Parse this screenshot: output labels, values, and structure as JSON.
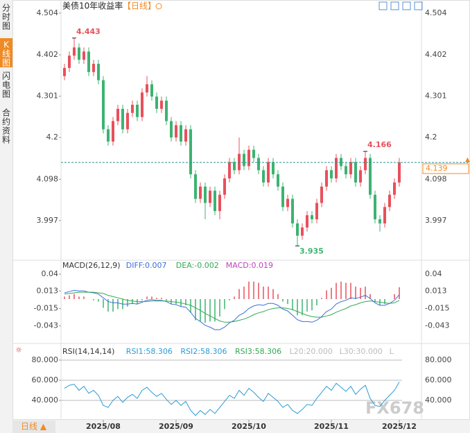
{
  "sidebar": [
    "分时图",
    "K线图",
    "闪电图",
    "合约资料"
  ],
  "chart_data": {
    "type": "candlestick",
    "title": "美债10年收益率",
    "subtitle": "【日线】",
    "period_button": "日线 ▲",
    "watermark": "FX678",
    "up_color": "#e8505b",
    "down_color": "#3cb371",
    "ylim": [
      3.9,
      4.536
    ],
    "yticks": [
      4.504,
      4.402,
      4.301,
      4.2,
      4.098,
      3.997
    ],
    "xticks": [
      {
        "value": 8,
        "label": "2025/08"
      },
      {
        "value": 23,
        "label": "2025/09"
      },
      {
        "value": 38,
        "label": "2025/10"
      },
      {
        "value": 55,
        "label": "2025/11"
      },
      {
        "value": 69,
        "label": "2025/12"
      }
    ],
    "candles": [
      [
        4.35,
        4.38,
        4.34,
        4.37
      ],
      [
        4.37,
        4.41,
        4.36,
        4.4
      ],
      [
        4.4,
        4.443,
        4.39,
        4.42
      ],
      [
        4.42,
        4.43,
        4.38,
        4.39
      ],
      [
        4.39,
        4.42,
        4.38,
        4.41
      ],
      [
        4.41,
        4.42,
        4.35,
        4.36
      ],
      [
        4.36,
        4.39,
        4.35,
        4.38
      ],
      [
        4.38,
        4.39,
        4.33,
        4.34
      ],
      [
        4.34,
        4.35,
        4.21,
        4.22
      ],
      [
        4.22,
        4.23,
        4.18,
        4.19
      ],
      [
        4.19,
        4.25,
        4.18,
        4.24
      ],
      [
        4.24,
        4.28,
        4.23,
        4.27
      ],
      [
        4.27,
        4.28,
        4.21,
        4.22
      ],
      [
        4.22,
        4.27,
        4.21,
        4.26
      ],
      [
        4.26,
        4.29,
        4.25,
        4.28
      ],
      [
        4.28,
        4.29,
        4.24,
        4.25
      ],
      [
        4.25,
        4.32,
        4.24,
        4.31
      ],
      [
        4.31,
        4.35,
        4.3,
        4.33
      ],
      [
        4.33,
        4.34,
        4.29,
        4.3
      ],
      [
        4.3,
        4.31,
        4.26,
        4.27
      ],
      [
        4.27,
        4.3,
        4.26,
        4.29
      ],
      [
        4.29,
        4.3,
        4.23,
        4.24
      ],
      [
        4.24,
        4.25,
        4.19,
        4.2
      ],
      [
        4.2,
        4.24,
        4.19,
        4.23
      ],
      [
        4.23,
        4.24,
        4.18,
        4.19
      ],
      [
        4.19,
        4.23,
        4.18,
        4.22
      ],
      [
        4.22,
        4.23,
        4.1,
        4.11
      ],
      [
        4.11,
        4.12,
        4.04,
        4.05
      ],
      [
        4.05,
        4.09,
        4.04,
        4.08
      ],
      [
        4.08,
        4.09,
        4.0,
        4.04
      ],
      [
        4.04,
        4.08,
        4.03,
        4.07
      ],
      [
        4.07,
        4.08,
        4.01,
        4.02
      ],
      [
        4.02,
        4.07,
        4.0,
        4.06
      ],
      [
        4.06,
        4.11,
        4.05,
        4.1
      ],
      [
        4.1,
        4.15,
        4.09,
        4.14
      ],
      [
        4.14,
        4.15,
        4.11,
        4.12
      ],
      [
        4.12,
        4.2,
        4.11,
        4.16
      ],
      [
        4.16,
        4.17,
        4.12,
        4.13
      ],
      [
        4.13,
        4.18,
        4.12,
        4.17
      ],
      [
        4.17,
        4.18,
        4.14,
        4.15
      ],
      [
        4.15,
        4.16,
        4.11,
        4.12
      ],
      [
        4.12,
        4.13,
        4.08,
        4.09
      ],
      [
        4.09,
        4.15,
        4.08,
        4.14
      ],
      [
        4.14,
        4.15,
        4.1,
        4.11
      ],
      [
        4.11,
        4.12,
        4.07,
        4.08
      ],
      [
        4.08,
        4.09,
        4.02,
        4.03
      ],
      [
        4.03,
        4.06,
        4.02,
        4.05
      ],
      [
        4.05,
        4.06,
        3.98,
        3.99
      ],
      [
        3.99,
        4.0,
        3.935,
        3.96
      ],
      [
        3.96,
        3.99,
        3.95,
        3.98
      ],
      [
        3.98,
        4.02,
        3.97,
        4.01
      ],
      [
        4.01,
        4.02,
        3.99,
        4.0
      ],
      [
        4.0,
        4.05,
        3.99,
        4.04
      ],
      [
        4.04,
        4.09,
        4.03,
        4.08
      ],
      [
        4.08,
        4.13,
        4.07,
        4.12
      ],
      [
        4.12,
        4.13,
        4.09,
        4.1
      ],
      [
        4.1,
        4.16,
        4.09,
        4.15
      ],
      [
        4.15,
        4.16,
        4.12,
        4.13
      ],
      [
        4.13,
        4.14,
        4.1,
        4.11
      ],
      [
        4.11,
        4.15,
        4.1,
        4.14
      ],
      [
        4.14,
        4.15,
        4.08,
        4.09
      ],
      [
        4.09,
        4.13,
        4.08,
        4.12
      ],
      [
        4.12,
        4.166,
        4.11,
        4.15
      ],
      [
        4.15,
        4.16,
        4.05,
        4.06
      ],
      [
        4.06,
        4.07,
        3.99,
        4.0
      ],
      [
        4.0,
        4.01,
        3.97,
        3.99
      ],
      [
        3.99,
        4.04,
        3.98,
        4.03
      ],
      [
        4.03,
        4.07,
        4.02,
        4.06
      ],
      [
        4.06,
        4.1,
        4.05,
        4.09
      ],
      [
        4.09,
        4.15,
        4.08,
        4.139
      ]
    ],
    "macd": {
      "labels": [
        "MACD(26,12,9)",
        "DIFF:0.007",
        "DEA:-0.002",
        "MACD:0.019"
      ],
      "label_colors": [
        "#333",
        "#3b6fd8",
        "#32a852",
        "#c040c0"
      ],
      "ylim": [
        -0.06,
        0.05
      ],
      "yticks": [
        0.04,
        0.013,
        -0.015,
        -0.043
      ],
      "diff": {
        "color": "#3b6fd8",
        "values": [
          0.01,
          0.012,
          0.014,
          0.013,
          0.013,
          0.011,
          0.01,
          0.008,
          0.002,
          -0.004,
          -0.006,
          -0.006,
          -0.008,
          -0.008,
          -0.007,
          -0.008,
          -0.005,
          -0.002,
          -0.001,
          -0.002,
          -0.002,
          -0.004,
          -0.008,
          -0.009,
          -0.012,
          -0.013,
          -0.021,
          -0.031,
          -0.036,
          -0.042,
          -0.045,
          -0.049,
          -0.049,
          -0.045,
          -0.038,
          -0.034,
          -0.026,
          -0.022,
          -0.015,
          -0.011,
          -0.009,
          -0.01,
          -0.007,
          -0.007,
          -0.01,
          -0.016,
          -0.019,
          -0.026,
          -0.033,
          -0.036,
          -0.036,
          -0.037,
          -0.034,
          -0.028,
          -0.02,
          -0.016,
          -0.008,
          -0.004,
          -0.002,
          0.002,
          0.001,
          0.003,
          0.006,
          0.001,
          -0.006,
          -0.01,
          -0.01,
          -0.007,
          -0.002,
          0.007
        ]
      },
      "dea": {
        "color": "#32a852",
        "values": [
          0.008,
          0.009,
          0.01,
          0.011,
          0.011,
          0.011,
          0.011,
          0.01,
          0.009,
          0.006,
          0.004,
          0.002,
          0.0,
          -0.002,
          -0.003,
          -0.004,
          -0.004,
          -0.004,
          -0.003,
          -0.003,
          -0.003,
          -0.003,
          -0.004,
          -0.005,
          -0.006,
          -0.008,
          -0.01,
          -0.014,
          -0.018,
          -0.023,
          -0.027,
          -0.031,
          -0.035,
          -0.037,
          -0.037,
          -0.036,
          -0.034,
          -0.032,
          -0.029,
          -0.025,
          -0.022,
          -0.02,
          -0.017,
          -0.015,
          -0.014,
          -0.014,
          -0.015,
          -0.017,
          -0.02,
          -0.023,
          -0.026,
          -0.028,
          -0.029,
          -0.029,
          -0.027,
          -0.025,
          -0.021,
          -0.018,
          -0.015,
          -0.011,
          -0.009,
          -0.006,
          -0.004,
          -0.003,
          -0.004,
          -0.005,
          -0.006,
          -0.007,
          -0.006,
          -0.002
        ]
      },
      "hist": [
        0.004,
        0.006,
        0.008,
        0.004,
        0.004,
        0.0,
        -0.002,
        -0.004,
        -0.014,
        -0.02,
        -0.02,
        -0.016,
        -0.016,
        -0.012,
        -0.008,
        -0.008,
        -0.002,
        0.004,
        0.004,
        0.002,
        0.002,
        -0.002,
        -0.008,
        -0.008,
        -0.012,
        -0.01,
        -0.022,
        -0.034,
        -0.036,
        -0.038,
        -0.036,
        -0.036,
        -0.028,
        -0.016,
        -0.002,
        0.004,
        0.016,
        0.02,
        0.028,
        0.028,
        0.026,
        0.02,
        0.02,
        0.016,
        0.008,
        -0.004,
        -0.008,
        -0.018,
        -0.026,
        -0.026,
        -0.02,
        -0.018,
        -0.01,
        0.002,
        0.014,
        0.018,
        0.026,
        0.028,
        0.026,
        0.026,
        0.02,
        0.018,
        0.02,
        0.008,
        -0.004,
        -0.01,
        -0.008,
        0.0,
        0.008,
        0.019
      ]
    },
    "rsi": {
      "labels": [
        "RSI(14,14,14)",
        "RSI1:58.306",
        "RSI2:58.306",
        "RSI3:58.306",
        "L20:20.000",
        "L30:30.000",
        "L"
      ],
      "label_colors": [
        "#333",
        "#2a9bd6",
        "#2a9bd6",
        "#32a852",
        "#bbb",
        "#bbb",
        "#bbb"
      ],
      "ylim": [
        20,
        90
      ],
      "yticks": [
        {
          "value": 80,
          "label": "80.000"
        },
        {
          "value": 60,
          "label": "60.000"
        },
        {
          "value": 40,
          "label": "40.000"
        }
      ],
      "color": "#2a9bd6",
      "values": [
        52,
        55,
        56,
        50,
        54,
        47,
        50,
        45,
        35,
        33,
        40,
        44,
        38,
        43,
        46,
        42,
        50,
        53,
        48,
        44,
        47,
        41,
        36,
        40,
        35,
        39,
        30,
        25,
        30,
        26,
        31,
        27,
        33,
        39,
        45,
        42,
        50,
        45,
        52,
        48,
        43,
        39,
        47,
        43,
        39,
        33,
        36,
        30,
        27,
        31,
        36,
        35,
        42,
        48,
        54,
        50,
        57,
        53,
        49,
        54,
        46,
        51,
        55,
        42,
        35,
        34,
        40,
        45,
        50,
        58.306
      ]
    }
  }
}
